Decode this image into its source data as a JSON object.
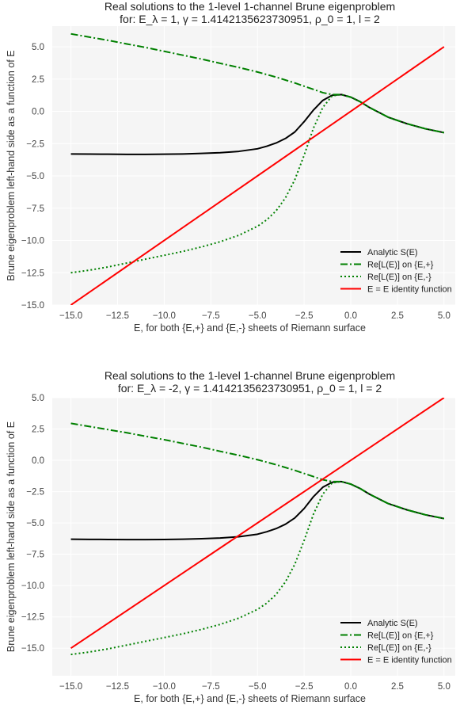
{
  "chart_data": [
    {
      "type": "line",
      "title": "Real solutions to the 1-level 1-channel Brune eigenproblem",
      "subtitle": "for: E_λ = 1, γ = 1.4142135623730951, ρ_0 = 1, l = 2",
      "xlabel": "E, for both {E,+} and {E,-} sheets of Riemann surface",
      "ylabel": "Brune eigenproblem left-hand side as a function of E",
      "xlim": [
        -16,
        5.6
      ],
      "ylim": [
        -15,
        6.6
      ],
      "xticks": [
        -15,
        -12.5,
        -10,
        -7.5,
        -5,
        -2.5,
        0,
        2.5,
        5
      ],
      "xtick_labels": [
        "−15.0",
        "−12.5",
        "−10.0",
        "−7.5",
        "−5.0",
        "−2.5",
        "0.0",
        "2.5",
        "5.0"
      ],
      "yticks": [
        5,
        2.5,
        0,
        -2.5,
        -5,
        -7.5,
        -10,
        -12.5,
        -15
      ],
      "ytick_labels": [
        "5.0",
        "2.5",
        "0.0",
        "−2.5",
        "−5.0",
        "−7.5",
        "−10.0",
        "−12.5",
        "−15.0"
      ],
      "grid": true,
      "legend_position": "bottom-right",
      "series": [
        {
          "name": "Analytic S(E)",
          "color": "#000000",
          "style": "solid",
          "x": [
            -15,
            -14,
            -13,
            -12,
            -11,
            -10,
            -9,
            -8,
            -7,
            -6,
            -5,
            -4.5,
            -4,
            -3.5,
            -3,
            -2.5,
            -2,
            -1.5,
            -1,
            -0.5,
            0,
            0.5,
            1,
            2,
            3,
            4,
            5
          ],
          "y": [
            -3.3,
            -3.31,
            -3.32,
            -3.33,
            -3.33,
            -3.32,
            -3.3,
            -3.26,
            -3.2,
            -3.1,
            -2.9,
            -2.7,
            -2.45,
            -2.1,
            -1.6,
            -0.8,
            0.1,
            0.85,
            1.25,
            1.3,
            1.1,
            0.75,
            0.3,
            -0.45,
            -0.95,
            -1.35,
            -1.65
          ]
        },
        {
          "name": "Re[L(E)] on {E,+}",
          "color": "#008000",
          "style": "dashdot",
          "x": [
            -15,
            -14,
            -13,
            -12,
            -11,
            -10,
            -9,
            -8,
            -7,
            -6,
            -5,
            -4,
            -3,
            -2.5,
            -2,
            -1.5,
            -1,
            -0.5,
            0,
            0.5,
            1,
            2,
            3,
            4,
            5
          ],
          "y": [
            6.0,
            5.75,
            5.5,
            5.22,
            4.95,
            4.65,
            4.35,
            4.05,
            3.72,
            3.4,
            3.05,
            2.65,
            2.2,
            1.95,
            1.7,
            1.45,
            1.3,
            1.3,
            1.1,
            0.75,
            0.3,
            -0.45,
            -0.95,
            -1.35,
            -1.65
          ]
        },
        {
          "name": "Re[L(E)] on {E,-}",
          "color": "#008000",
          "style": "dotted",
          "x": [
            -15,
            -14,
            -13,
            -12,
            -11,
            -10,
            -9,
            -8,
            -7,
            -6,
            -5,
            -4.5,
            -4,
            -3.5,
            -3,
            -2.5,
            -2,
            -1.5,
            -1,
            -0.5,
            0,
            0.5,
            1,
            2,
            3,
            4,
            5
          ],
          "y": [
            -12.5,
            -12.3,
            -12.05,
            -11.75,
            -11.45,
            -11.15,
            -10.85,
            -10.5,
            -10.1,
            -9.6,
            -8.9,
            -8.4,
            -7.7,
            -6.7,
            -5.3,
            -3.4,
            -1.3,
            0.3,
            1.2,
            1.3,
            1.1,
            0.75,
            0.3,
            -0.45,
            -0.95,
            -1.35,
            -1.65
          ]
        },
        {
          "name": "E = E identity function",
          "color": "#ff0000",
          "style": "solid",
          "x": [
            -15,
            5
          ],
          "y": [
            -15,
            5
          ]
        }
      ]
    },
    {
      "type": "line",
      "title": "Real solutions to the 1-level 1-channel Brune eigenproblem",
      "subtitle": "for: E_λ = -2, γ = 1.4142135623730951, ρ_0 = 1, l = 2",
      "xlabel": "E, for both {E,+} and {E,-} sheets of Riemann surface",
      "ylabel": "Brune eigenproblem left-hand side as a function of E",
      "xlim": [
        -16,
        5.6
      ],
      "ylim": [
        -17.2,
        5
      ],
      "xticks": [
        -15,
        -12.5,
        -10,
        -7.5,
        -5,
        -2.5,
        0,
        2.5,
        5
      ],
      "xtick_labels": [
        "−15.0",
        "−12.5",
        "−10.0",
        "−7.5",
        "−5.0",
        "−2.5",
        "0.0",
        "2.5",
        "5.0"
      ],
      "yticks": [
        5,
        2.5,
        0,
        -2.5,
        -5,
        -7.5,
        -10,
        -12.5,
        -15
      ],
      "ytick_labels": [
        "5.0",
        "2.5",
        "0.0",
        "−2.5",
        "−5.0",
        "−7.5",
        "−10.0",
        "−12.5",
        "−15.0"
      ],
      "grid": true,
      "legend_position": "bottom-right",
      "series": [
        {
          "name": "Analytic S(E)",
          "color": "#000000",
          "style": "solid",
          "x": [
            -15,
            -14,
            -13,
            -12,
            -11,
            -10,
            -9,
            -8,
            -7,
            -6,
            -5,
            -4.5,
            -4,
            -3.5,
            -3,
            -2.5,
            -2,
            -1.5,
            -1,
            -0.5,
            0,
            0.5,
            1,
            2,
            3,
            4,
            5
          ],
          "y": [
            -6.3,
            -6.31,
            -6.32,
            -6.33,
            -6.33,
            -6.32,
            -6.3,
            -6.26,
            -6.2,
            -6.1,
            -5.9,
            -5.7,
            -5.45,
            -5.1,
            -4.6,
            -3.85,
            -2.9,
            -2.15,
            -1.75,
            -1.7,
            -1.9,
            -2.25,
            -2.7,
            -3.45,
            -3.95,
            -4.35,
            -4.65
          ]
        },
        {
          "name": "Re[L(E)] on {E,+}",
          "color": "#008000",
          "style": "dashdot",
          "x": [
            -15,
            -14,
            -13,
            -12,
            -11,
            -10,
            -9,
            -8,
            -7,
            -6,
            -5,
            -4,
            -3,
            -2.5,
            -2,
            -1.5,
            -1,
            -0.5,
            0,
            0.5,
            1,
            2,
            3,
            4,
            5
          ],
          "y": [
            2.95,
            2.7,
            2.45,
            2.2,
            1.92,
            1.65,
            1.35,
            1.05,
            0.72,
            0.4,
            0.05,
            -0.35,
            -0.8,
            -1.05,
            -1.3,
            -1.55,
            -1.7,
            -1.7,
            -1.9,
            -2.25,
            -2.7,
            -3.45,
            -3.95,
            -4.35,
            -4.65
          ]
        },
        {
          "name": "Re[L(E)] on {E,-}",
          "color": "#008000",
          "style": "dotted",
          "x": [
            -15,
            -14,
            -13,
            -12,
            -11,
            -10,
            -9,
            -8,
            -7,
            -6,
            -5,
            -4.5,
            -4,
            -3.5,
            -3,
            -2.5,
            -2,
            -1.5,
            -1,
            -0.5,
            0,
            0.5,
            1,
            2,
            3,
            4,
            5
          ],
          "y": [
            -15.5,
            -15.3,
            -15.05,
            -14.75,
            -14.45,
            -14.15,
            -13.85,
            -13.5,
            -13.1,
            -12.6,
            -11.9,
            -11.4,
            -10.7,
            -9.7,
            -8.3,
            -6.4,
            -4.3,
            -2.7,
            -1.8,
            -1.7,
            -1.9,
            -2.25,
            -2.7,
            -3.45,
            -3.95,
            -4.35,
            -4.65
          ]
        },
        {
          "name": "E = E identity function",
          "color": "#ff0000",
          "style": "solid",
          "x": [
            -15,
            5
          ],
          "y": [
            -15,
            5
          ]
        }
      ]
    }
  ]
}
